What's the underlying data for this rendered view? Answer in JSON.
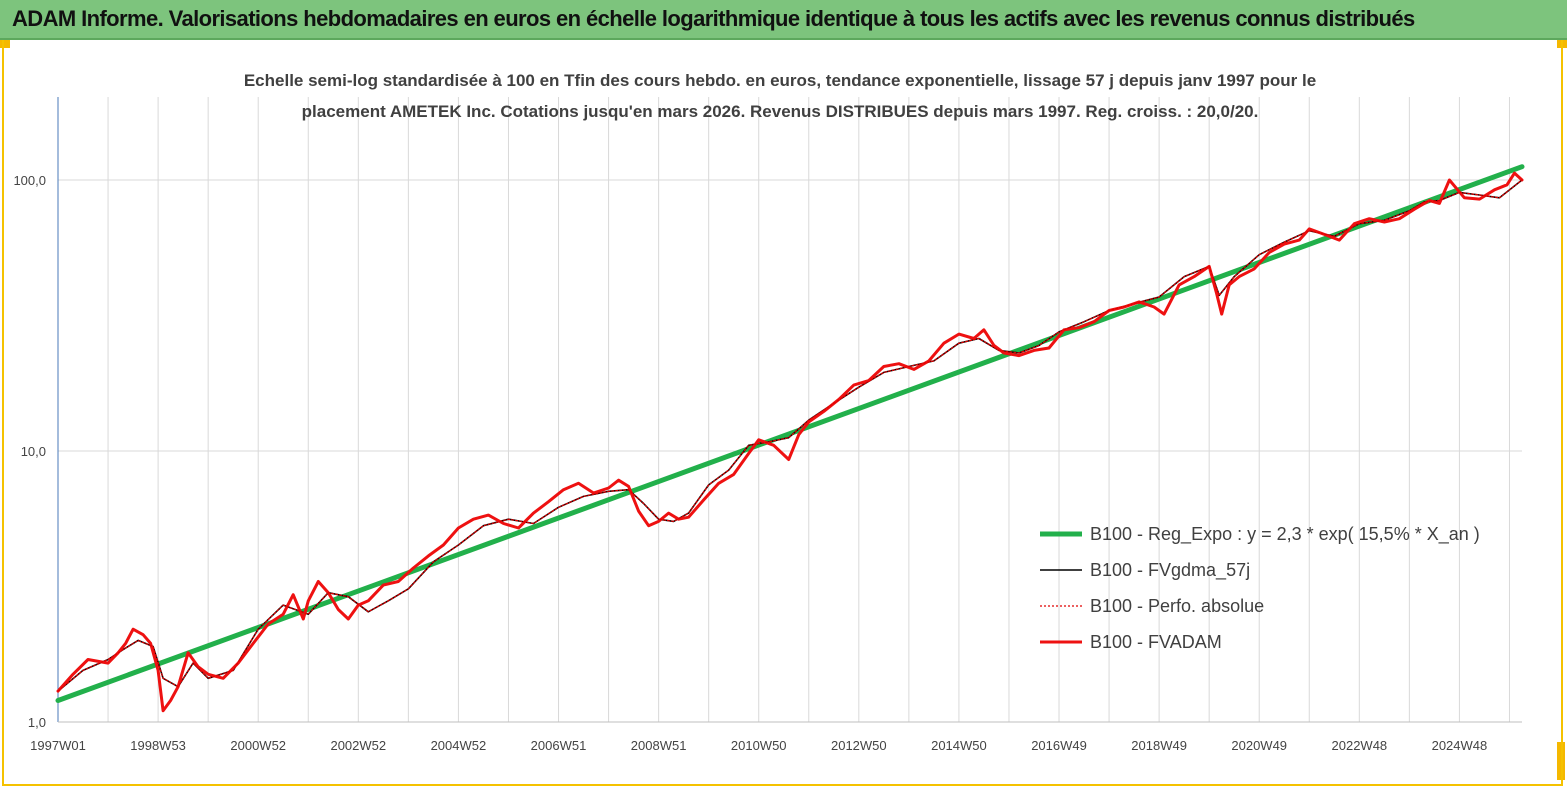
{
  "header": {
    "title": "ADAM Informe. Valorisations hebdomadaires en euros en échelle logarithmique identique à tous les actifs avec les revenus connus distribués"
  },
  "colors": {
    "header_bg": "#7dc47d",
    "frame": "#f5c200",
    "regression": "#22b04b",
    "fvgdma": "#000000",
    "perfo": "#e00000",
    "fvadam": "#ee1111",
    "gridline": "#d9d9d9"
  },
  "chart_data": {
    "type": "line",
    "subtitle_lines": [
      "Echelle semi-log standardisée à 100 en Tfin des cours hebdo. en euros, tendance exponentielle, lissage 57 j depuis janv 1997 pour le",
      "placement AMETEK Inc. Cotations jusqu'en mars 2026. Revenus DISTRIBUES depuis mars 1997. Reg. croiss. : 20,0/20."
    ],
    "y_scale": "log",
    "ylim": [
      1,
      180
    ],
    "y_ticks": [
      {
        "value": 1,
        "label": "1,0"
      },
      {
        "value": 10,
        "label": "10,0"
      },
      {
        "value": 100,
        "label": "100,0"
      }
    ],
    "xlim": [
      1997.0,
      2026.25
    ],
    "x_ticks": [
      {
        "value": 1997.0,
        "label": "1997W01"
      },
      {
        "value": 1999.0,
        "label": "1998W53"
      },
      {
        "value": 2001.0,
        "label": "2000W52"
      },
      {
        "value": 2003.0,
        "label": "2002W52"
      },
      {
        "value": 2005.0,
        "label": "2004W52"
      },
      {
        "value": 2007.0,
        "label": "2006W51"
      },
      {
        "value": 2009.0,
        "label": "2008W51"
      },
      {
        "value": 2011.0,
        "label": "2010W50"
      },
      {
        "value": 2013.0,
        "label": "2012W50"
      },
      {
        "value": 2015.0,
        "label": "2014W50"
      },
      {
        "value": 2017.0,
        "label": "2016W49"
      },
      {
        "value": 2019.0,
        "label": "2018W49"
      },
      {
        "value": 2021.0,
        "label": "2020W49"
      },
      {
        "value": 2023.0,
        "label": "2022W48"
      },
      {
        "value": 2025.0,
        "label": "2024W48"
      }
    ],
    "legend_position": "right-middle",
    "series": [
      {
        "name": "B100 - Reg_Expo : y = 2,3 * exp( 15,5% *  X_an )",
        "style": "regression",
        "x": [
          1997.0,
          2026.25
        ],
        "y": [
          1.2,
          112
        ]
      },
      {
        "name": "B100 - FVgdma_57j",
        "style": "smooth",
        "x": [
          1997.0,
          1997.5,
          1998.0,
          1998.3,
          1998.6,
          1998.9,
          1999.1,
          1999.4,
          1999.7,
          2000.0,
          2000.5,
          2001.0,
          2001.5,
          2002.0,
          2002.4,
          2002.8,
          2003.2,
          2003.6,
          2004.0,
          2004.5,
          2005.0,
          2005.5,
          2006.0,
          2006.5,
          2007.0,
          2007.5,
          2008.0,
          2008.4,
          2008.7,
          2009.0,
          2009.3,
          2009.6,
          2010.0,
          2010.4,
          2010.8,
          2011.2,
          2011.6,
          2012.0,
          2012.5,
          2013.0,
          2013.5,
          2014.0,
          2014.5,
          2015.0,
          2015.4,
          2015.8,
          2016.2,
          2016.6,
          2017.0,
          2017.5,
          2018.0,
          2018.5,
          2019.0,
          2019.5,
          2020.0,
          2020.2,
          2020.5,
          2021.0,
          2021.5,
          2022.0,
          2022.5,
          2023.0,
          2023.5,
          2024.0,
          2024.3,
          2024.6,
          2025.0,
          2025.4,
          2025.8,
          2026.25
        ],
        "y": [
          1.3,
          1.55,
          1.7,
          1.85,
          2.0,
          1.9,
          1.45,
          1.35,
          1.65,
          1.45,
          1.55,
          2.2,
          2.7,
          2.5,
          3.0,
          2.9,
          2.55,
          2.8,
          3.1,
          3.9,
          4.5,
          5.3,
          5.6,
          5.4,
          6.2,
          6.8,
          7.1,
          7.2,
          6.4,
          5.6,
          5.5,
          5.9,
          7.5,
          8.5,
          10.5,
          10.8,
          11.2,
          13.0,
          15.0,
          17.2,
          19.5,
          20.5,
          21.5,
          25.0,
          26.0,
          23.5,
          23.0,
          24.5,
          27.5,
          30.0,
          33.0,
          35.0,
          37.0,
          44.0,
          48.0,
          37.5,
          44.0,
          53.0,
          59.0,
          65.0,
          62.0,
          69.0,
          71.0,
          77.0,
          83.0,
          84.0,
          90.0,
          88.0,
          86.0,
          100.0
        ]
      },
      {
        "name": "B100 - Perfo. absolue",
        "style": "dotted",
        "x": [
          1997.0,
          1997.5,
          1998.0,
          1998.3,
          1998.6,
          1998.9,
          1999.1,
          1999.4,
          1999.7,
          2000.0,
          2000.5,
          2001.0,
          2001.5,
          2002.0,
          2002.4,
          2002.8,
          2003.2,
          2003.6,
          2004.0,
          2004.5,
          2005.0,
          2005.5,
          2006.0,
          2006.5,
          2007.0,
          2007.5,
          2008.0,
          2008.4,
          2008.7,
          2009.0,
          2009.3,
          2009.6,
          2010.0,
          2010.4,
          2010.8,
          2011.2,
          2011.6,
          2012.0,
          2012.5,
          2013.0,
          2013.5,
          2014.0,
          2014.5,
          2015.0,
          2015.4,
          2015.8,
          2016.2,
          2016.6,
          2017.0,
          2017.5,
          2018.0,
          2018.5,
          2019.0,
          2019.5,
          2020.0,
          2020.2,
          2020.5,
          2021.0,
          2021.5,
          2022.0,
          2022.5,
          2023.0,
          2023.5,
          2024.0,
          2024.3,
          2024.6,
          2025.0,
          2025.4,
          2025.8,
          2026.25
        ],
        "y": [
          1.3,
          1.55,
          1.7,
          1.85,
          2.0,
          1.9,
          1.45,
          1.35,
          1.65,
          1.45,
          1.55,
          2.2,
          2.7,
          2.5,
          3.0,
          2.9,
          2.55,
          2.8,
          3.1,
          3.9,
          4.5,
          5.3,
          5.6,
          5.4,
          6.2,
          6.8,
          7.1,
          7.2,
          6.4,
          5.6,
          5.5,
          5.9,
          7.5,
          8.5,
          10.5,
          10.8,
          11.2,
          13.0,
          15.0,
          17.2,
          19.5,
          20.5,
          21.5,
          25.0,
          26.0,
          23.5,
          23.0,
          24.5,
          27.5,
          30.0,
          33.0,
          35.0,
          37.0,
          44.0,
          48.0,
          37.5,
          44.0,
          53.0,
          59.0,
          65.0,
          62.0,
          69.0,
          71.0,
          77.0,
          83.0,
          84.0,
          90.0,
          88.0,
          86.0,
          100.0
        ]
      },
      {
        "name": "B100 - FVADAM",
        "style": "main",
        "x": [
          1997.0,
          1997.3,
          1997.6,
          1998.0,
          1998.2,
          1998.35,
          1998.5,
          1998.7,
          1998.85,
          1999.0,
          1999.1,
          1999.25,
          1999.4,
          1999.6,
          1999.8,
          2000.0,
          2000.3,
          2000.6,
          2000.9,
          2001.2,
          2001.5,
          2001.7,
          2001.9,
          2002.0,
          2002.2,
          2002.4,
          2002.6,
          2002.8,
          2003.0,
          2003.2,
          2003.5,
          2003.8,
          2004.1,
          2004.4,
          2004.7,
          2005.0,
          2005.3,
          2005.6,
          2005.9,
          2006.2,
          2006.5,
          2006.8,
          2007.1,
          2007.4,
          2007.7,
          2008.0,
          2008.2,
          2008.4,
          2008.6,
          2008.8,
          2009.0,
          2009.2,
          2009.4,
          2009.6,
          2009.9,
          2010.2,
          2010.5,
          2010.8,
          2011.0,
          2011.3,
          2011.6,
          2011.8,
          2012.0,
          2012.3,
          2012.6,
          2012.9,
          2013.2,
          2013.5,
          2013.8,
          2014.1,
          2014.4,
          2014.7,
          2015.0,
          2015.3,
          2015.5,
          2015.7,
          2015.9,
          2016.2,
          2016.5,
          2016.8,
          2017.1,
          2017.4,
          2017.7,
          2018.0,
          2018.3,
          2018.6,
          2018.9,
          2019.1,
          2019.4,
          2019.7,
          2020.0,
          2020.15,
          2020.25,
          2020.4,
          2020.6,
          2020.9,
          2021.2,
          2021.5,
          2021.8,
          2022.0,
          2022.3,
          2022.6,
          2022.9,
          2023.2,
          2023.5,
          2023.8,
          2024.1,
          2024.4,
          2024.6,
          2024.8,
          2025.1,
          2025.4,
          2025.7,
          2025.95,
          2026.1,
          2026.25
        ],
        "y": [
          1.3,
          1.5,
          1.7,
          1.65,
          1.8,
          1.95,
          2.2,
          2.1,
          1.95,
          1.55,
          1.1,
          1.2,
          1.35,
          1.8,
          1.6,
          1.5,
          1.45,
          1.65,
          1.95,
          2.3,
          2.5,
          2.95,
          2.4,
          2.8,
          3.3,
          3.0,
          2.6,
          2.4,
          2.7,
          2.8,
          3.2,
          3.3,
          3.7,
          4.1,
          4.5,
          5.2,
          5.6,
          5.8,
          5.4,
          5.2,
          5.9,
          6.5,
          7.2,
          7.6,
          7.0,
          7.3,
          7.8,
          7.4,
          6.0,
          5.3,
          5.5,
          5.9,
          5.6,
          5.7,
          6.6,
          7.6,
          8.2,
          9.8,
          11.0,
          10.5,
          9.3,
          11.5,
          12.8,
          14.0,
          15.5,
          17.5,
          18.2,
          20.5,
          21.0,
          20.0,
          21.5,
          25.0,
          27.0,
          26.0,
          28.0,
          24.5,
          23.0,
          22.5,
          23.5,
          24.0,
          28.0,
          28.5,
          30.0,
          33.0,
          34.0,
          35.5,
          34.0,
          32.0,
          41.0,
          44.0,
          48.0,
          38.0,
          32.0,
          41.0,
          44.0,
          47.0,
          54.0,
          58.0,
          60.0,
          66.0,
          63.0,
          60.0,
          69.0,
          72.0,
          70.0,
          72.0,
          78.0,
          84.0,
          82.0,
          100.0,
          86.0,
          85.0,
          92.0,
          96.0,
          106.0,
          100.0
        ]
      }
    ]
  }
}
